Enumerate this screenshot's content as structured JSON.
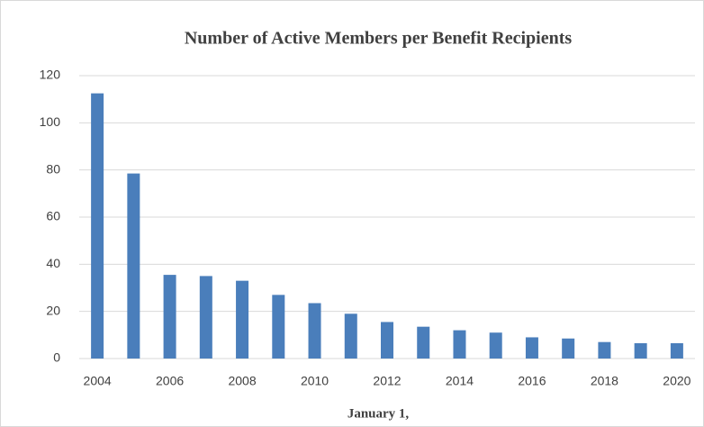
{
  "chart_data": {
    "type": "bar",
    "title": "Number of Active Members per Benefit Recipients",
    "x_label": "January 1,",
    "categories": [
      "2004",
      null,
      "2006",
      null,
      "2008",
      null,
      "2010",
      null,
      "2012",
      null,
      "2014",
      null,
      "2016",
      null,
      "2018",
      null,
      "2020"
    ],
    "values": [
      112.5,
      78.5,
      35.5,
      35,
      33,
      27,
      23.5,
      19,
      15.5,
      13.5,
      12,
      11,
      9,
      8.5,
      7,
      6.5,
      6.5
    ],
    "color": "#4a7ebb",
    "ylim": [
      0,
      120
    ],
    "yticks": [
      0,
      20,
      40,
      60,
      80,
      100,
      120
    ],
    "grid": true
  }
}
